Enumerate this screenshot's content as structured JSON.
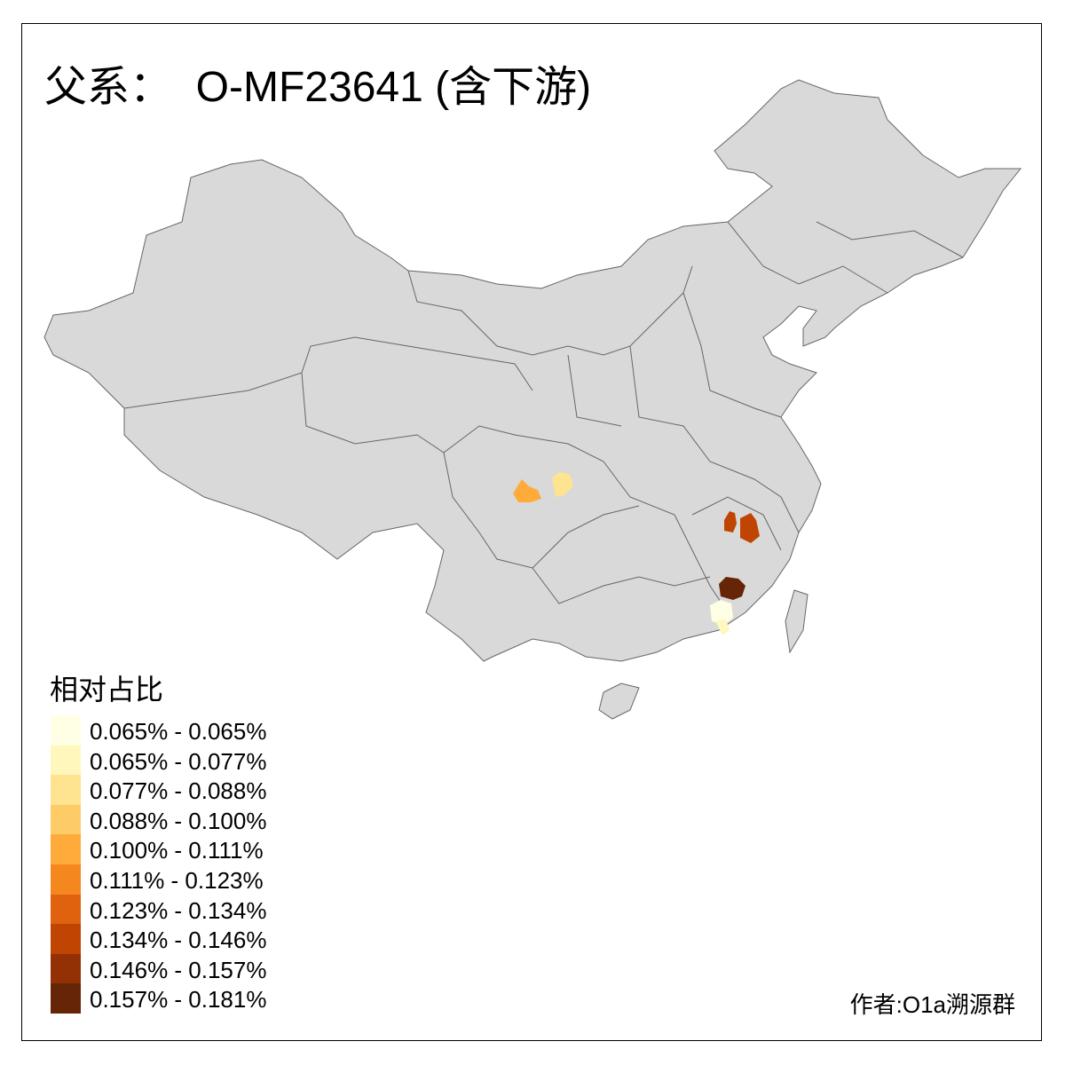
{
  "title": "父系：  O-MF23641 (含下游)",
  "map": {
    "base_fill": "#D9D9D9",
    "border_color": "#666666",
    "highlighted_regions": [
      {
        "bin": 4
      },
      {
        "bin": 2
      },
      {
        "bin": 7
      },
      {
        "bin": 7
      },
      {
        "bin": 9
      },
      {
        "bin": 0
      },
      {
        "bin": 1
      }
    ]
  },
  "legend": {
    "title": "相对占比",
    "items": [
      {
        "label": "0.065% - 0.065%",
        "color": "#FFFFE5"
      },
      {
        "label": "0.065% - 0.077%",
        "color": "#FFF7BC"
      },
      {
        "label": "0.077% - 0.088%",
        "color": "#FEE391"
      },
      {
        "label": "0.088% - 0.100%",
        "color": "#FECC66"
      },
      {
        "label": "0.100% - 0.111%",
        "color": "#FEAB3C"
      },
      {
        "label": "0.111% - 0.123%",
        "color": "#F5871F"
      },
      {
        "label": "0.123% - 0.134%",
        "color": "#E0620F"
      },
      {
        "label": "0.134% - 0.146%",
        "color": "#C04402"
      },
      {
        "label": "0.146% - 0.157%",
        "color": "#933004"
      },
      {
        "label": "0.157% - 0.181%",
        "color": "#662506"
      }
    ]
  },
  "credit": "作者:O1a溯源群"
}
